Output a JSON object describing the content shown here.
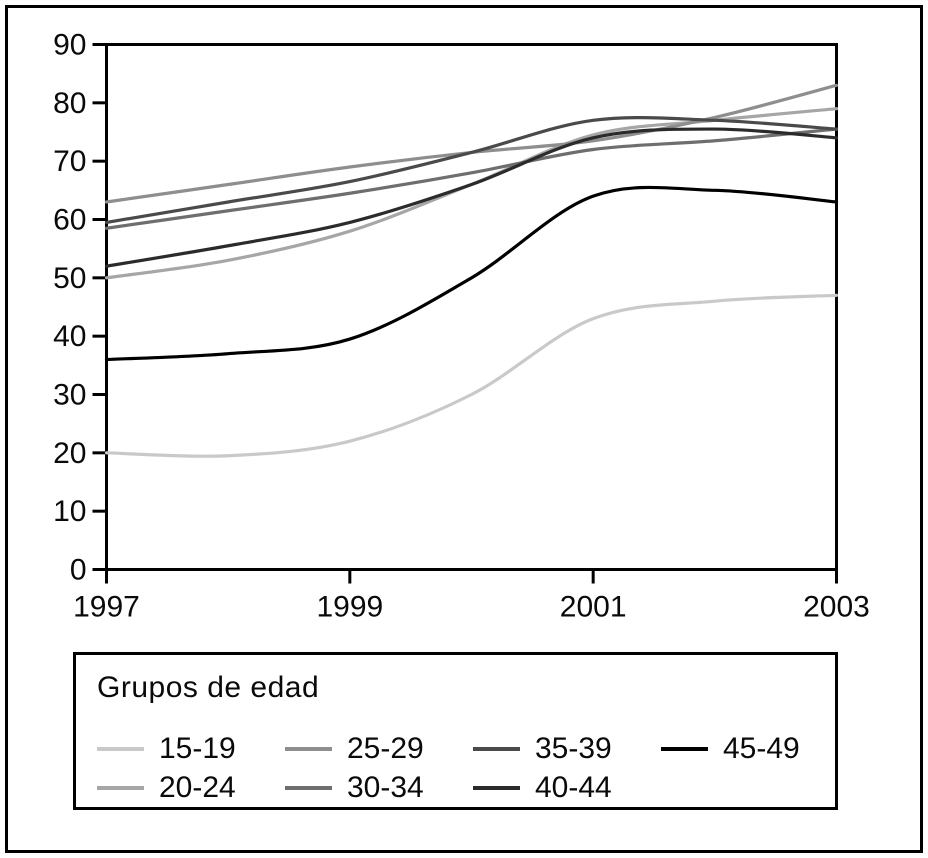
{
  "chart_data": {
    "type": "line",
    "x": [
      1997,
      1998,
      1999,
      2000,
      2001,
      2002,
      2003
    ],
    "xlim": [
      1997,
      2003
    ],
    "ylim": [
      0,
      90
    ],
    "yticks": [
      0,
      10,
      20,
      30,
      40,
      50,
      60,
      70,
      80,
      90
    ],
    "xtick_labels": [
      "1997",
      "1999",
      "2001",
      "2003"
    ],
    "xtick_values": [
      1997,
      1999,
      2001,
      2003
    ],
    "grid": false,
    "title": "",
    "xlabel": "",
    "ylabel": "",
    "legend": {
      "title": "Grupos de edad",
      "position": "bottom-box"
    },
    "series": [
      {
        "name": "15-19",
        "color": "#c9c9c9",
        "values": [
          20,
          19.5,
          22,
          30,
          43,
          46,
          47
        ]
      },
      {
        "name": "20-24",
        "color": "#a6a6a6",
        "values": [
          50,
          53,
          58,
          66,
          74.5,
          77,
          79
        ]
      },
      {
        "name": "25-29",
        "color": "#8e8e8e",
        "values": [
          63,
          66,
          69,
          71.5,
          73.5,
          77.5,
          83
        ]
      },
      {
        "name": "30-34",
        "color": "#6e6e6e",
        "values": [
          58.5,
          61.5,
          64.5,
          68,
          72,
          73.5,
          75.5
        ]
      },
      {
        "name": "35-39",
        "color": "#4a4a4a",
        "values": [
          59.5,
          63,
          66.5,
          71.5,
          77,
          77,
          75.5
        ]
      },
      {
        "name": "40-44",
        "color": "#2b2b2b",
        "values": [
          52,
          55.5,
          59.5,
          66,
          74,
          75.5,
          74
        ]
      },
      {
        "name": "45-49",
        "color": "#000000",
        "values": [
          36,
          37,
          39.5,
          50,
          64,
          65,
          63
        ]
      }
    ],
    "legend_columns": [
      [
        "15-19",
        "20-24"
      ],
      [
        "25-29",
        "30-34"
      ],
      [
        "35-39",
        "40-44"
      ],
      [
        "45-49"
      ]
    ]
  }
}
